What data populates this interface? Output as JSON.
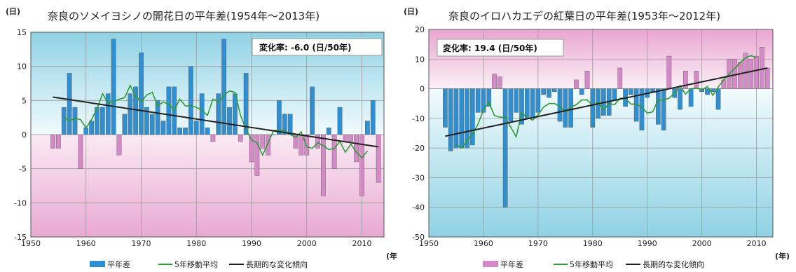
{
  "chart_data": [
    {
      "type": "bar",
      "title": "奈良のソメイヨシノの開花日の平年差(1954年〜2013年)",
      "ylabel": "(日)",
      "xlabel": "(年)",
      "annotation": "変化率: -6.0 (日/50年)",
      "ylim": [
        -15,
        15
      ],
      "xlim": [
        1950,
        2014
      ],
      "yticks": [
        15,
        10,
        5,
        0,
        -5,
        -10,
        -15
      ],
      "xticks": [
        1950,
        1960,
        1970,
        1980,
        1990,
        2000,
        2010
      ],
      "grid": true,
      "legend_position": "bottom",
      "legend": [
        "平年差",
        "5年移動平均",
        "長期的な変化傾向"
      ],
      "colors": {
        "positive": "#2f8fd0",
        "negative": "#d58ac8",
        "moving_avg": "#2e9b3a",
        "trend": "#222222"
      },
      "x": [
        1954,
        1955,
        1956,
        1957,
        1958,
        1959,
        1960,
        1961,
        1962,
        1963,
        1964,
        1965,
        1966,
        1967,
        1968,
        1969,
        1970,
        1971,
        1972,
        1973,
        1974,
        1975,
        1976,
        1977,
        1978,
        1979,
        1980,
        1981,
        1982,
        1983,
        1984,
        1985,
        1986,
        1987,
        1988,
        1989,
        1990,
        1991,
        1992,
        1993,
        1994,
        1995,
        1996,
        1997,
        1998,
        1999,
        2000,
        2001,
        2002,
        2003,
        2004,
        2005,
        2006,
        2007,
        2008,
        2009,
        2010,
        2011,
        2012,
        2013
      ],
      "series": [
        {
          "name": "平年差",
          "values": [
            -2,
            -2,
            4,
            9,
            4,
            -5,
            1,
            2,
            4,
            4,
            6,
            14,
            -3,
            3,
            6,
            7,
            12,
            4,
            3,
            5,
            2,
            7,
            7,
            1,
            1,
            10,
            2,
            6,
            1,
            -1,
            6,
            14,
            4,
            6,
            -1,
            9,
            -4,
            -6,
            -2,
            -3,
            0,
            5,
            3,
            3,
            -2,
            -3,
            -3,
            7,
            -2,
            -9,
            1,
            -5,
            4,
            -1,
            -1,
            -4,
            -9,
            2,
            5,
            -7
          ]
        },
        {
          "name": "5年移動平均",
          "values": [
            null,
            null,
            2.6,
            2.0,
            2.4,
            2.2,
            1.0,
            2.2,
            3.8,
            6.0,
            4.6,
            4.8,
            5.2,
            5.4,
            7.2,
            5.6,
            4.8,
            5.8,
            6.2,
            4.2,
            4.8,
            4.4,
            3.6,
            5.2,
            4.2,
            4.2,
            4.0,
            3.6,
            2.8,
            5.2,
            4.8,
            5.8,
            6.4,
            6.2,
            2.8,
            0.8,
            -0.8,
            -1.2,
            -3.0,
            -1.2,
            0.6,
            0.6,
            0.6,
            0.0,
            -0.4,
            0.4,
            -1.8,
            -2.0,
            -1.2,
            -1.6,
            -2.2,
            -2.0,
            -1.0,
            -2.6,
            -1.4,
            -2.6,
            -3.4,
            -2.4,
            null,
            null
          ]
        },
        {
          "name": "長期的な変化傾向",
          "values": [
            5.5,
            -1.8
          ],
          "x": [
            1954,
            2013
          ]
        }
      ]
    },
    {
      "type": "bar",
      "title": "奈良のイロハカエデの紅葉日の平年差(1953年〜2012年)",
      "ylabel": "(日)",
      "xlabel": "(年)",
      "annotation": "変化率: 19.4 (日/50年)",
      "ylim": [
        -50,
        20
      ],
      "xlim": [
        1950,
        2013
      ],
      "yticks": [
        20,
        10,
        0,
        -10,
        -20,
        -30,
        -40,
        -50
      ],
      "xticks": [
        1950,
        1960,
        1970,
        1980,
        1990,
        2000,
        2010
      ],
      "grid": true,
      "legend_position": "bottom",
      "legend": [
        "平年差",
        "5年移動平均",
        "長期的な変化傾向"
      ],
      "colors": {
        "positive": "#d58ac8",
        "negative": "#2f8fd0",
        "moving_avg": "#2e9b3a",
        "trend": "#222222"
      },
      "x": [
        1953,
        1954,
        1955,
        1956,
        1957,
        1958,
        1959,
        1960,
        1961,
        1962,
        1963,
        1964,
        1965,
        1966,
        1967,
        1968,
        1969,
        1970,
        1971,
        1972,
        1973,
        1974,
        1975,
        1976,
        1977,
        1978,
        1979,
        1980,
        1981,
        1982,
        1983,
        1984,
        1985,
        1986,
        1987,
        1988,
        1989,
        1990,
        1991,
        1992,
        1993,
        1994,
        1995,
        1996,
        1997,
        1998,
        1999,
        2000,
        2001,
        2002,
        2003,
        2004,
        2005,
        2006,
        2007,
        2008,
        2009,
        2010,
        2011,
        2012
      ],
      "series": [
        {
          "name": "平年差",
          "values": [
            -13,
            -21,
            -20,
            -20,
            -20,
            -19,
            -8,
            -8,
            -6,
            5,
            4,
            -40,
            -11,
            -8,
            -12,
            -10,
            -10,
            -8,
            -2,
            -3,
            -1,
            -11,
            -13,
            -13,
            3,
            -2,
            6,
            -13,
            -10,
            -9,
            -9,
            -4,
            7,
            -6,
            -2,
            -11,
            -14,
            -3,
            -1,
            -12,
            -14,
            11,
            -3,
            -7,
            6,
            -6,
            6,
            -1,
            -2,
            -1,
            -7,
            3,
            10,
            10,
            9,
            12,
            10,
            11,
            14,
            7
          ]
        },
        {
          "name": "5年移動平均",
          "values": [
            null,
            null,
            -18.8,
            -20.0,
            -17.4,
            -15.4,
            -12.0,
            -7.2,
            -4.6,
            -9.0,
            -9.6,
            -9.6,
            -13.0,
            -16.2,
            -8.2,
            -9.6,
            -10.6,
            -8.8,
            -6.2,
            -5.0,
            -5.0,
            -6.0,
            -7.8,
            -6.2,
            -5.4,
            -3.8,
            -3.8,
            -5.6,
            -4.6,
            -7.0,
            -5.0,
            -5.4,
            -3.2,
            -3.2,
            -5.2,
            -5.2,
            -6.2,
            -8.2,
            -7.8,
            -3.8,
            -3.8,
            -3.2,
            -1.4,
            1.0,
            -1.8,
            0.0,
            0.2,
            -0.4,
            0.8,
            -2.2,
            0.6,
            3.0,
            5.0,
            6.8,
            8.8,
            10.4,
            11.2,
            10.4,
            null,
            null
          ]
        },
        {
          "name": "長期的な変化傾向",
          "values": [
            -16.0,
            7.0
          ],
          "x": [
            1953,
            2012
          ]
        }
      ]
    }
  ]
}
